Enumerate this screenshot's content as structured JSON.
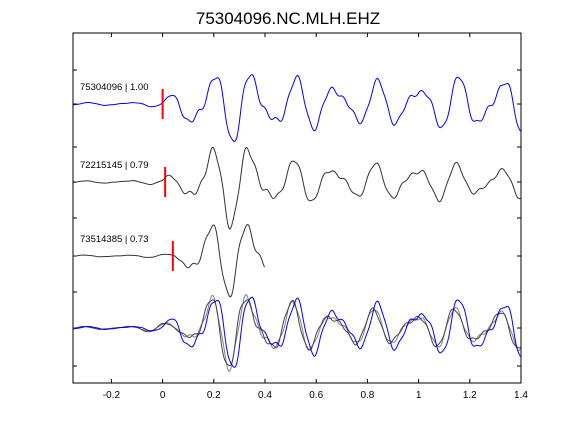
{
  "chart_data": {
    "type": "line",
    "title": "75304096.NC.MLH.EHZ",
    "xlabel": "",
    "ylabel": "",
    "xlim": [
      -0.35,
      1.4
    ],
    "xticks": [
      -0.2,
      0,
      0.2,
      0.4,
      0.6,
      0.8,
      1,
      1.2,
      1.4
    ],
    "xtick_labels": [
      "-0.2",
      "0",
      "0.2",
      "0.4",
      "0.6",
      "0.8",
      "1",
      "1.2",
      "1.4"
    ],
    "grid": false,
    "colors": {
      "reference": "#0000ff",
      "match": "#333333",
      "overlay_gray": "#808080",
      "pick": "#ff0000"
    },
    "traces": [
      {
        "label": "75304096 | 1.00",
        "id": "75304096",
        "correlation": 1.0,
        "color": "#0000ff",
        "pick_time": 0.0,
        "xend": 1.4,
        "envelope": [
          [
            -0.35,
            0.03
          ],
          [
            -0.15,
            0.05
          ],
          [
            0.0,
            0.08
          ],
          [
            0.05,
            0.35
          ],
          [
            0.1,
            0.85
          ],
          [
            0.2,
            0.9
          ],
          [
            0.3,
            1.0
          ],
          [
            0.45,
            0.8
          ],
          [
            0.6,
            0.65
          ],
          [
            0.8,
            0.6
          ],
          [
            1.0,
            0.6
          ],
          [
            1.2,
            0.75
          ],
          [
            1.4,
            0.8
          ]
        ]
      },
      {
        "label": "72215145 | 0.79",
        "id": "72215145",
        "correlation": 0.79,
        "color": "#333333",
        "pick_time": 0.01,
        "xend": 1.4,
        "envelope": [
          [
            -0.35,
            0.02
          ],
          [
            -0.15,
            0.04
          ],
          [
            0.0,
            0.06
          ],
          [
            0.08,
            0.4
          ],
          [
            0.15,
            0.8
          ],
          [
            0.28,
            1.0
          ],
          [
            0.35,
            0.9
          ],
          [
            0.45,
            0.55
          ],
          [
            0.6,
            0.45
          ],
          [
            0.8,
            0.4
          ],
          [
            1.0,
            0.45
          ],
          [
            1.2,
            0.4
          ],
          [
            1.4,
            0.35
          ]
        ]
      },
      {
        "label": "73514385 | 0.73",
        "id": "73514385",
        "correlation": 0.73,
        "color": "#333333",
        "pick_time": 0.04,
        "xend": 0.4,
        "envelope": [
          [
            -0.35,
            0.02
          ],
          [
            -0.1,
            0.03
          ],
          [
            0.04,
            0.05
          ],
          [
            0.1,
            0.55
          ],
          [
            0.2,
            0.9
          ],
          [
            0.3,
            1.0
          ],
          [
            0.38,
            0.9
          ],
          [
            0.4,
            0.85
          ]
        ]
      }
    ],
    "overlay_envelope": [
      [
        -0.35,
        0.03
      ],
      [
        -0.1,
        0.06
      ],
      [
        0.05,
        0.15
      ],
      [
        0.12,
        0.55
      ],
      [
        0.2,
        0.9
      ],
      [
        0.3,
        1.0
      ],
      [
        0.45,
        0.75
      ],
      [
        0.6,
        0.5
      ],
      [
        0.8,
        0.45
      ],
      [
        1.0,
        0.45
      ],
      [
        1.2,
        0.5
      ],
      [
        1.4,
        0.5
      ]
    ]
  }
}
